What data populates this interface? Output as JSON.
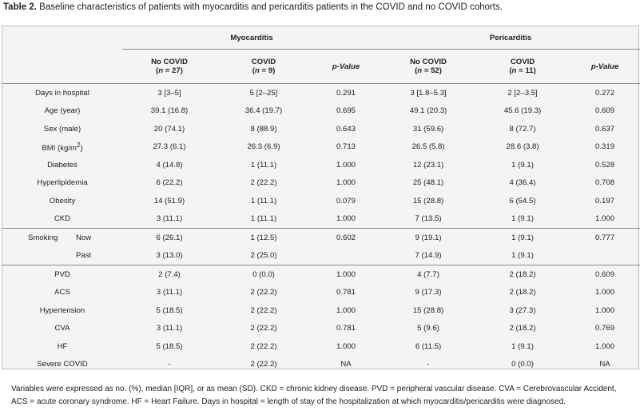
{
  "caption": {
    "label": "Table 2.",
    "text": "Baseline characteristics of patients with myocarditis and pericarditis patients in the COVID and no COVID cohorts."
  },
  "groups": {
    "myocarditis": "Myocarditis",
    "pericarditis": "Pericarditis"
  },
  "columns": [
    {
      "line1": "No COVID",
      "n_prefix": "(",
      "n_var": "n",
      "n_value": " = 27)"
    },
    {
      "line1": "COVID",
      "n_prefix": "(",
      "n_var": "n",
      "n_value": " = 9)"
    },
    {
      "pvalue": "p-Value"
    },
    {
      "line1": "No COVID",
      "n_prefix": "(",
      "n_var": "n",
      "n_value": " = 52)"
    },
    {
      "line1": "COVID",
      "n_prefix": "(",
      "n_var": "n",
      "n_value": " = 11)"
    },
    {
      "pvalue": "p-Value"
    }
  ],
  "rows_a": [
    {
      "label": "Days in hospital",
      "v": [
        "3 [3–5]",
        "5 [2–25]",
        "0.291",
        "3 [1.8–5.3]",
        "2 [2–3.5]",
        "0.272"
      ]
    },
    {
      "label": "Age (year)",
      "v": [
        "39.1 (16.8)",
        "36.4 (19.7)",
        "0.695",
        "49.1 (20.3)",
        "45.6 (19.3)",
        "0.609"
      ]
    },
    {
      "label": "Sex (male)",
      "v": [
        "20 (74.1)",
        "8 (88.9)",
        "0.643",
        "31 (59.6)",
        "8 (72.7)",
        "0.637"
      ]
    },
    {
      "label": "BMI (kg/m",
      "sup": "2",
      "label_end": ")",
      "v": [
        "27.3 (6.1)",
        "26.3 (6.9)",
        "0.713",
        "26.5 (5.8)",
        "28.6 (3.8)",
        "0.319"
      ]
    },
    {
      "label": "Diabetes",
      "v": [
        "4 (14.8)",
        "1 (11.1)",
        "1.000",
        "12 (23.1)",
        "1 (9.1)",
        "0.528"
      ]
    },
    {
      "label": "Hyperlipidemia",
      "v": [
        "6 (22.2)",
        "2 (22.2)",
        "1.000",
        "25 (48.1)",
        "4 (36.4)",
        "0.708"
      ]
    },
    {
      "label": "Obesity",
      "v": [
        "14 (51.9)",
        "1 (11.1)",
        "0.079",
        "15 (28.8)",
        "6 (54.5)",
        "0.197"
      ]
    },
    {
      "label": "CKD",
      "v": [
        "3 (11.1)",
        "1 (11.1)",
        "1.000",
        "7 (13.5)",
        "1 (9.1)",
        "1.000"
      ]
    }
  ],
  "smoking": {
    "label": "Smoking",
    "now": {
      "label": "Now",
      "v": [
        "6 (26.1)",
        "1 (12.5)",
        "0.602",
        "9 (19.1)",
        "1 (9.1)",
        "0.777"
      ]
    },
    "past": {
      "label": "Past",
      "v": [
        "3 (13.0)",
        "2 (25.0)",
        "",
        "7 (14.9)",
        "1 (9.1)",
        ""
      ]
    }
  },
  "rows_b": [
    {
      "label": "PVD",
      "v": [
        "2 (7.4)",
        "0 (0.0)",
        "1.000",
        "4 (7.7)",
        "2 (18.2)",
        "0.609"
      ]
    },
    {
      "label": "ACS",
      "v": [
        "3 (11.1)",
        "2 (22.2)",
        "0.781",
        "9 (17.3)",
        "2 (18.2)",
        "1.000"
      ]
    },
    {
      "label": "Hypertension",
      "v": [
        "5 (18.5)",
        "2 (22.2)",
        "1.000",
        "15 (28.8)",
        "3 (27.3)",
        "1.000"
      ]
    },
    {
      "label": "CVA",
      "v": [
        "3 (11.1)",
        "2 (22.2)",
        "0.781",
        "5 (9.6)",
        "2 (18.2)",
        "0.769"
      ]
    },
    {
      "label": "HF",
      "v": [
        "5 (18.5)",
        "2 (22.2)",
        "1.000",
        "6 (11.5)",
        "1 (9.1)",
        "1.000"
      ]
    },
    {
      "label": "Severe COVID",
      "v": [
        "-",
        "2 (22.2)",
        "NA",
        "-",
        "0 (0.0)",
        "NA"
      ]
    }
  ],
  "footnote": "Variables were expressed as no. (%), median [IQR], or as mean (SD). CKD = chronic kidney disease. PVD = peripheral vascular disease. CVA = Cerebrovascular Accident, ACS = acute coronary syndrome. HF = Heart Failure. Days in hospital = length of stay of the hospitalization at which myocarditis/pericarditis were diagnosed."
}
